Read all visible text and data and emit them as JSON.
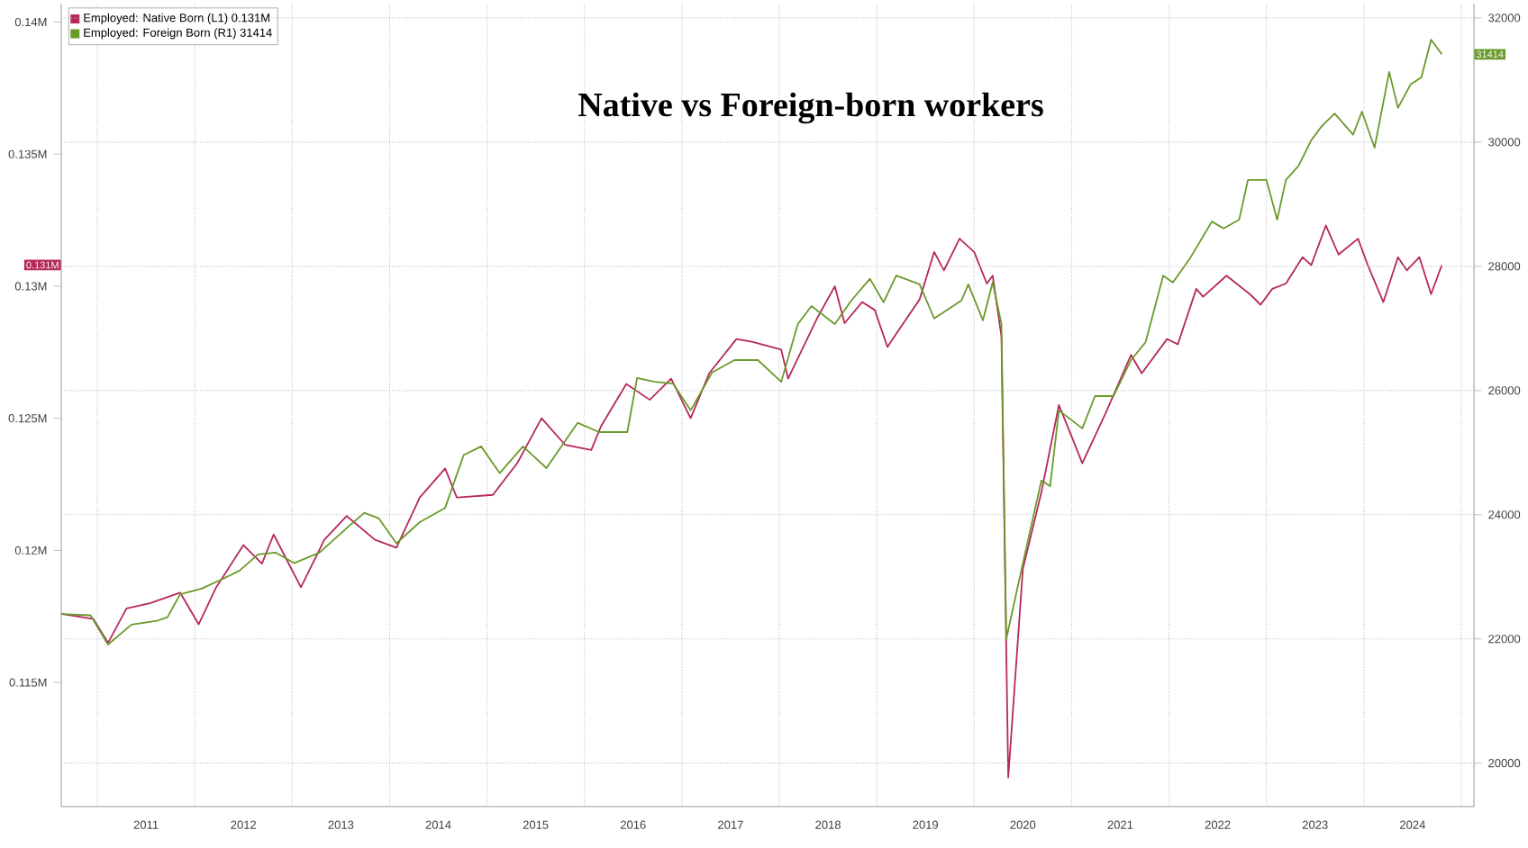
{
  "chart_data": {
    "type": "line",
    "title": "Native vs Foreign-born workers",
    "series": [
      {
        "name": "Employed: Native Born (L1)  0.131M",
        "color": "#b5285a",
        "axis": "y",
        "x": [
          2010.63,
          2010.96,
          2011.11,
          2011.3,
          2011.54,
          2011.85,
          2012.04,
          2012.22,
          2012.5,
          2012.69,
          2012.81,
          2013.09,
          2013.33,
          2013.56,
          2013.85,
          2014.07,
          2014.31,
          2014.57,
          2014.69,
          2015.06,
          2015.31,
          2015.56,
          2015.8,
          2016.07,
          2016.17,
          2016.43,
          2016.67,
          2016.89,
          2017.09,
          2017.28,
          2017.56,
          2017.72,
          2018.02,
          2018.09,
          2018.39,
          2018.57,
          2018.67,
          2018.85,
          2018.98,
          2019.11,
          2019.2,
          2019.44,
          2019.59,
          2019.69,
          2019.85,
          2020.0,
          2020.13,
          2020.19,
          2020.28,
          2020.35,
          2020.5,
          2020.69,
          2020.87,
          2020.98,
          2021.11,
          2021.35,
          2021.61,
          2021.72,
          2021.98,
          2022.09,
          2022.28,
          2022.35,
          2022.59,
          2022.83,
          2022.94,
          2023.06,
          2023.2,
          2023.37,
          2023.46,
          2023.61,
          2023.74,
          2023.94,
          2024.04,
          2024.2,
          2024.35,
          2024.44,
          2024.57,
          2024.69,
          2024.8
        ],
        "values": [
          0.1176,
          0.1174,
          0.1165,
          0.1178,
          0.118,
          0.1184,
          0.1172,
          0.1186,
          0.1202,
          0.1195,
          0.1206,
          0.1186,
          0.1204,
          0.1213,
          0.1204,
          0.1201,
          0.122,
          0.1231,
          0.122,
          0.1221,
          0.1233,
          0.125,
          0.124,
          0.1238,
          0.1247,
          0.1263,
          0.1257,
          0.1265,
          0.125,
          0.1267,
          0.128,
          0.1279,
          0.1276,
          0.1265,
          0.1288,
          0.13,
          0.1286,
          0.1294,
          0.1291,
          0.1277,
          0.1282,
          0.1295,
          0.1313,
          0.1306,
          0.1318,
          0.1313,
          0.1301,
          0.1304,
          0.1281,
          0.1114,
          0.1193,
          0.1222,
          0.1255,
          0.1245,
          0.1233,
          0.1252,
          0.1274,
          0.1267,
          0.128,
          0.1278,
          0.1299,
          0.1296,
          0.1304,
          0.1297,
          0.1293,
          0.1299,
          0.1301,
          0.1311,
          0.1308,
          0.1323,
          0.1312,
          0.1318,
          0.1308,
          0.1294,
          0.1311,
          0.1306,
          0.1311,
          0.1297,
          0.1308
        ]
      },
      {
        "name": "Employed: Foreign Born (R1) 31414",
        "color": "#6a9a2a",
        "axis": "y2",
        "x": [
          2010.63,
          2010.93,
          2011.11,
          2011.35,
          2011.61,
          2011.72,
          2011.85,
          2012.07,
          2012.28,
          2012.46,
          2012.65,
          2012.83,
          2013.02,
          2013.28,
          2013.57,
          2013.74,
          2013.89,
          2014.07,
          2014.31,
          2014.57,
          2014.76,
          2014.94,
          2015.13,
          2015.37,
          2015.61,
          2015.93,
          2016.15,
          2016.44,
          2016.54,
          2016.72,
          2016.91,
          2017.09,
          2017.31,
          2017.54,
          2017.78,
          2018.02,
          2018.19,
          2018.33,
          2018.57,
          2018.74,
          2018.93,
          2019.07,
          2019.2,
          2019.44,
          2019.59,
          2019.87,
          2019.94,
          2020.09,
          2020.19,
          2020.28,
          2020.33,
          2020.5,
          2020.69,
          2020.78,
          2020.87,
          2021.11,
          2021.24,
          2021.43,
          2021.61,
          2021.76,
          2021.94,
          2022.04,
          2022.22,
          2022.44,
          2022.56,
          2022.72,
          2022.81,
          2023.0,
          2023.11,
          2023.2,
          2023.33,
          2023.46,
          2023.57,
          2023.7,
          2023.89,
          2023.98,
          2024.11,
          2024.26,
          2024.35,
          2024.48,
          2024.59,
          2024.69,
          2024.8
        ],
        "values": [
          22400,
          22380,
          21910,
          22230,
          22290,
          22350,
          22720,
          22810,
          22960,
          23100,
          23360,
          23390,
          23220,
          23390,
          23800,
          24030,
          23940,
          23540,
          23880,
          24110,
          24960,
          25100,
          24670,
          25100,
          24750,
          25480,
          25330,
          25330,
          26200,
          26140,
          26110,
          25680,
          26290,
          26490,
          26490,
          26140,
          27070,
          27360,
          27070,
          27450,
          27800,
          27420,
          27850,
          27710,
          27160,
          27450,
          27710,
          27130,
          27740,
          27070,
          22000,
          23220,
          24550,
          24460,
          25680,
          25390,
          25910,
          25910,
          26490,
          26780,
          27850,
          27740,
          28140,
          28720,
          28610,
          28750,
          29390,
          29390,
          28750,
          29390,
          29620,
          30030,
          30260,
          30460,
          30120,
          30490,
          29910,
          31130,
          30550,
          30930,
          31040,
          31650,
          31414
        ]
      }
    ],
    "annotations": [
      "0.131M",
      "31414"
    ],
    "xlim": [
      2010.63,
      2025.13
    ],
    "xticks": [
      {
        "value": 2011,
        "label": null
      },
      {
        "value": 2012,
        "label": null
      },
      {
        "value": 2013,
        "label": null
      },
      {
        "value": 2014,
        "label": null
      },
      {
        "value": 2015,
        "label": null
      },
      {
        "value": 2016,
        "label": null
      },
      {
        "value": 2017,
        "label": null
      },
      {
        "value": 2018,
        "label": null
      },
      {
        "value": 2019,
        "label": null
      },
      {
        "value": 2020,
        "label": null
      },
      {
        "value": 2021,
        "label": null
      },
      {
        "value": 2022,
        "label": null
      },
      {
        "value": 2023,
        "label": null
      },
      {
        "value": 2024,
        "label": null
      },
      {
        "value": 2025,
        "label": null
      },
      {
        "value": 2011.5,
        "label": "2011"
      },
      {
        "value": 2012.5,
        "label": "2012"
      },
      {
        "value": 2013.5,
        "label": "2013"
      },
      {
        "value": 2014.5,
        "label": "2014"
      },
      {
        "value": 2015.5,
        "label": "2015"
      },
      {
        "value": 2016.5,
        "label": "2016"
      },
      {
        "value": 2017.5,
        "label": "2017"
      },
      {
        "value": 2018.5,
        "label": "2018"
      },
      {
        "value": 2019.5,
        "label": "2019"
      },
      {
        "value": 2020.5,
        "label": "2020"
      },
      {
        "value": 2021.5,
        "label": "2021"
      },
      {
        "value": 2022.5,
        "label": "2022"
      },
      {
        "value": 2023.5,
        "label": "2023"
      },
      {
        "value": 2024.5,
        "label": "2024"
      }
    ],
    "ylim": [
      0.1103,
      0.1407
    ],
    "yticks": [
      {
        "value": 0.115,
        "label": "0.115M"
      },
      {
        "value": 0.12,
        "label": "0.12M"
      },
      {
        "value": 0.125,
        "label": "0.125M"
      },
      {
        "value": 0.13,
        "label": "0.13M"
      },
      {
        "value": 0.135,
        "label": "0.135M"
      },
      {
        "value": 0.14,
        "label": "0.14M"
      }
    ],
    "y2lim": [
      19300,
      32230
    ],
    "y2ticks": [
      20000,
      22000,
      24000,
      26000,
      28000,
      30000,
      32000
    ],
    "grid": true,
    "legend": "top left",
    "marker": "none",
    "line_style": "solid"
  }
}
